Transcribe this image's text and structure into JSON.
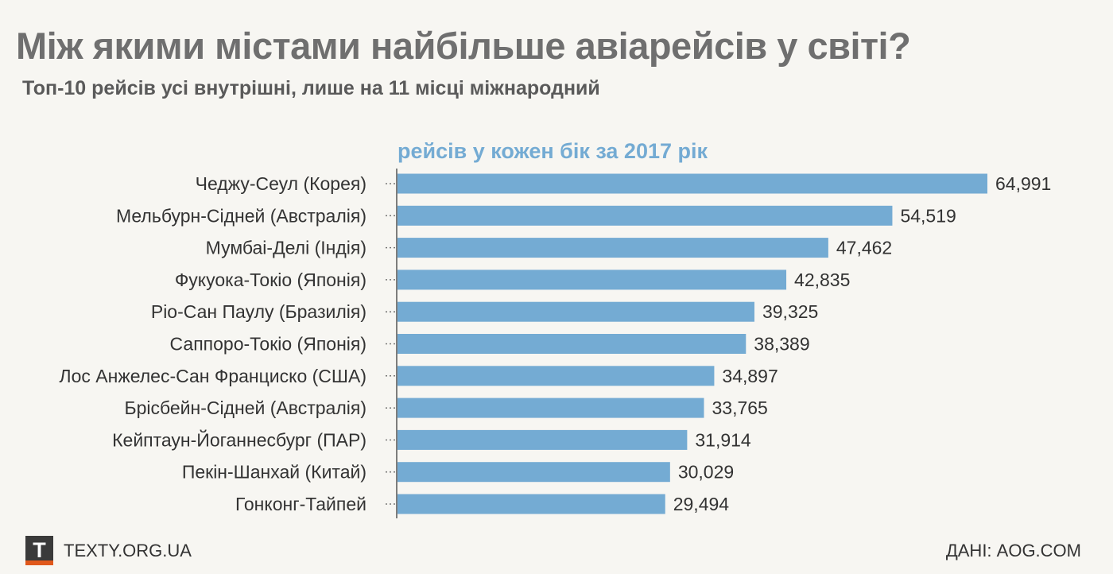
{
  "title": "Між якими містами найбільше авіарейсів у світі?",
  "subtitle": "Топ-10 рейсів усі внутрішні, лише на 11 місці міжнародний",
  "footer": {
    "logo_letter": "T",
    "site": "TEXTY.ORG.UA",
    "source": "ДАНІ: AOG.COM"
  },
  "colors": {
    "bar": "#74abd3",
    "chart_title": "#74abd3",
    "text": "#333333",
    "axis": "#555555"
  },
  "chart_data": {
    "type": "bar",
    "orientation": "horizontal",
    "title": "рейсів у кожен бік за 2017 рік",
    "categories": [
      "Чеджу-Сеул (Корея)",
      "Мельбурн-Сідней (Австралія)",
      "Мумбаі-Делі (Індія)",
      "Фукуока-Токіо (Японія)",
      "Ріо-Сан Паулу (Бразилія)",
      "Саппоро-Токіо (Японія)",
      "Лос Анжелес-Сан Франциско (США)",
      "Брісбейн-Сідней (Австралія)",
      "Кейптаун-Йоганнесбург (ПАР)",
      "Пекін-Шанхай (Китай)",
      "Гонконг-Тайпей"
    ],
    "values": [
      64991,
      54519,
      47462,
      42835,
      39325,
      38389,
      34897,
      33765,
      31914,
      30029,
      29494
    ],
    "value_labels": [
      "64,991",
      "54,519",
      "47,462",
      "42,835",
      "39,325",
      "38,389",
      "34,897",
      "33,765",
      "31,914",
      "30,029",
      "29,494"
    ],
    "xlim": [
      0,
      64991
    ],
    "grid": false
  }
}
